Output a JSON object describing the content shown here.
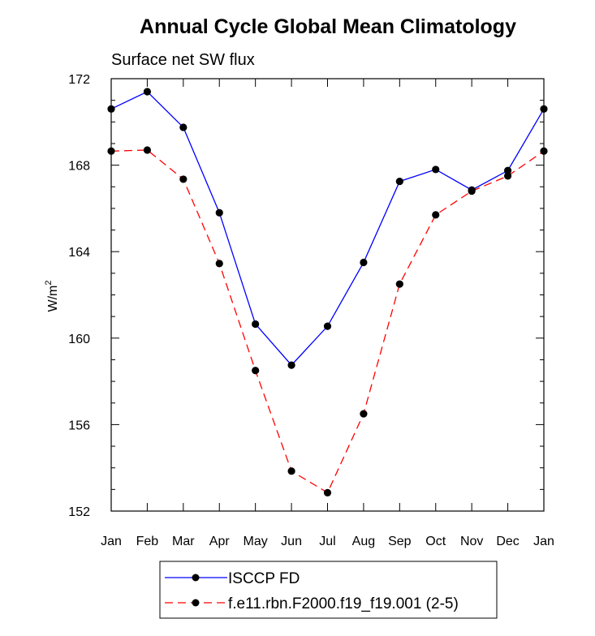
{
  "chart_data": {
    "type": "line",
    "title": "Annual Cycle Global Mean Climatology",
    "subtitle": "Surface net SW flux",
    "xlabel": "",
    "ylabel": "W/m",
    "ylabel_superscript": "2",
    "categories": [
      "Jan",
      "Feb",
      "Mar",
      "Apr",
      "May",
      "Jun",
      "Jul",
      "Aug",
      "Sep",
      "Oct",
      "Nov",
      "Dec",
      "Jan"
    ],
    "ylim": [
      152,
      172
    ],
    "yticks": [
      "152",
      "156",
      "160",
      "164",
      "168",
      "172"
    ],
    "series": [
      {
        "name": "ISCCP FD",
        "color": "#0000ff",
        "dash": "solid",
        "values": [
          170.6,
          171.4,
          169.75,
          165.8,
          160.65,
          158.75,
          160.55,
          163.5,
          167.25,
          167.8,
          166.85,
          167.75,
          170.6
        ]
      },
      {
        "name": "f.e11.rbn.F2000.f19_f19.001 (2-5)",
        "color": "#ff0000",
        "dash": "dashed",
        "values": [
          168.65,
          168.7,
          167.35,
          163.45,
          158.5,
          153.85,
          152.85,
          156.5,
          162.5,
          165.7,
          166.8,
          167.5,
          168.65
        ]
      }
    ],
    "grid": false,
    "legend_position": "bottom"
  }
}
